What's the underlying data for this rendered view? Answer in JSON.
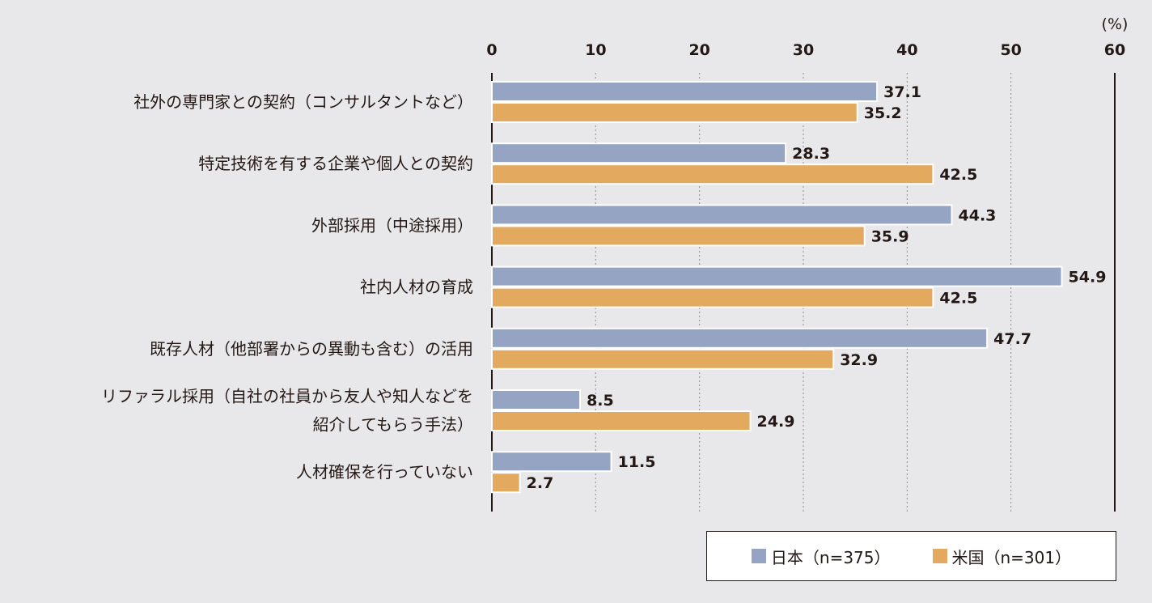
{
  "chart_data": {
    "type": "bar",
    "orientation": "horizontal",
    "unit": "(%)",
    "xlim": [
      0,
      60
    ],
    "xticks": [
      0,
      10,
      20,
      30,
      40,
      50,
      60
    ],
    "grid": "vertical dotted",
    "legend_position": "bottom-right",
    "categories": [
      [
        "社外の専門家との契約（コンサルタントなど）"
      ],
      [
        "特定技術を有する企業や個人との契約"
      ],
      [
        "外部採用（中途採用）"
      ],
      [
        "社内人材の育成"
      ],
      [
        "既存人材（他部署からの異動も含む）の活用"
      ],
      [
        "リファラル採用（自社の社員から友人や知人などを",
        "紹介してもらう手法）"
      ],
      [
        "人材確保を行っていない"
      ]
    ],
    "series": [
      {
        "name": "日本（n=375）",
        "color": "#95a4c2",
        "values": [
          37.1,
          28.3,
          44.3,
          54.9,
          47.7,
          8.5,
          11.5
        ],
        "labels": [
          "37.1",
          "28.3",
          "44.3",
          "54.9",
          "47.7",
          "8.5",
          "11.5"
        ]
      },
      {
        "name": "米国（n=301）",
        "color": "#e3a95e",
        "values": [
          35.2,
          42.5,
          35.9,
          42.5,
          32.9,
          24.9,
          2.7
        ],
        "labels": [
          "35.2",
          "42.5",
          "35.9",
          "42.5",
          "32.9",
          "24.9",
          "2.7"
        ]
      }
    ]
  }
}
